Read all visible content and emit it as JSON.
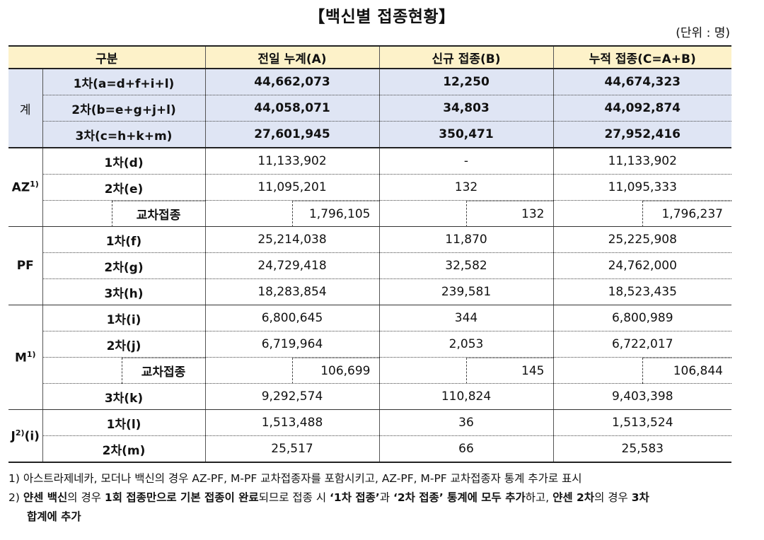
{
  "title": "【백신별 접종현황】",
  "unit": "(단위 : 명)",
  "headers": [
    "구분",
    "전일 누계(A)",
    "신규 접종(B)",
    "누적 접종(C=A+B)"
  ],
  "groups": {
    "total": {
      "label": "계",
      "rows": [
        {
          "label": "1차(a=d+f+i+l)",
          "prev": "44,662,073",
          "new": "12,250",
          "cum": "44,674,323"
        },
        {
          "label": "2차(b=e+g+j+l)",
          "prev": "44,058,071",
          "new": "34,803",
          "cum": "44,092,874"
        },
        {
          "label": "3차(c=h+k+m)",
          "prev": "27,601,945",
          "new": "350,471",
          "cum": "27,952,416"
        }
      ]
    },
    "az": {
      "label": "AZ",
      "sup": "1)",
      "rows": [
        {
          "label": "1차(d)",
          "prev": "11,133,902",
          "new": "-",
          "cum": "11,133,902"
        },
        {
          "label": "2차(e)",
          "prev": "11,095,201",
          "new": "132",
          "cum": "11,095,333"
        }
      ],
      "cross": {
        "label": "교차접종",
        "prev": "1,796,105",
        "new": "132",
        "cum": "1,796,237"
      }
    },
    "pf": {
      "label": "PF",
      "rows": [
        {
          "label": "1차(f)",
          "prev": "25,214,038",
          "new": "11,870",
          "cum": "25,225,908"
        },
        {
          "label": "2차(g)",
          "prev": "24,729,418",
          "new": "32,582",
          "cum": "24,762,000"
        },
        {
          "label": "3차(h)",
          "prev": "18,283,854",
          "new": "239,581",
          "cum": "18,523,435"
        }
      ]
    },
    "m": {
      "label": "M",
      "sup": "1)",
      "rows": [
        {
          "label": "1차(i)",
          "prev": "6,800,645",
          "new": "344",
          "cum": "6,800,989"
        },
        {
          "label": "2차(j)",
          "prev": "6,719,964",
          "new": "2,053",
          "cum": "6,722,017"
        },
        {
          "label": "3차(k)",
          "prev": "9,292,574",
          "new": "110,824",
          "cum": "9,403,398"
        }
      ],
      "cross": {
        "label": "교차접종",
        "prev": "106,699",
        "new": "145",
        "cum": "106,844"
      }
    },
    "j": {
      "label": "J",
      "sup": "2)",
      "suffix": "(i)",
      "rows": [
        {
          "label": "1차(l)",
          "prev": "1,513,488",
          "new": "36",
          "cum": "1,513,524"
        },
        {
          "label": "2차(m)",
          "prev": "25,517",
          "new": "66",
          "cum": "25,583"
        }
      ]
    }
  },
  "notes": {
    "n1": "1) 아스트라제네카, 모더나 백신의 경우 AZ-PF, M-PF 교차접종자를 포함시키고, AZ-PF, M-PF 교차접종자 통계 추가로 표시",
    "n2_parts": [
      {
        "t": "2) ",
        "b": false
      },
      {
        "t": "얀센 백신",
        "b": true
      },
      {
        "t": "의 경우 ",
        "b": false
      },
      {
        "t": "1회 접종만으로 기본 접종이 완료",
        "b": true
      },
      {
        "t": "되므로 접종 시 ",
        "b": false
      },
      {
        "t": "‘1차 접종’",
        "b": true
      },
      {
        "t": "과 ",
        "b": false
      },
      {
        "t": "‘2차 접종’ 통계에 모두 추가",
        "b": true
      },
      {
        "t": "하고, ",
        "b": false
      },
      {
        "t": "얀센 2차",
        "b": true
      },
      {
        "t": "의 경우 ",
        "b": false
      },
      {
        "t": "3차",
        "b": true
      }
    ],
    "n2_line2": "합계에 추가"
  }
}
